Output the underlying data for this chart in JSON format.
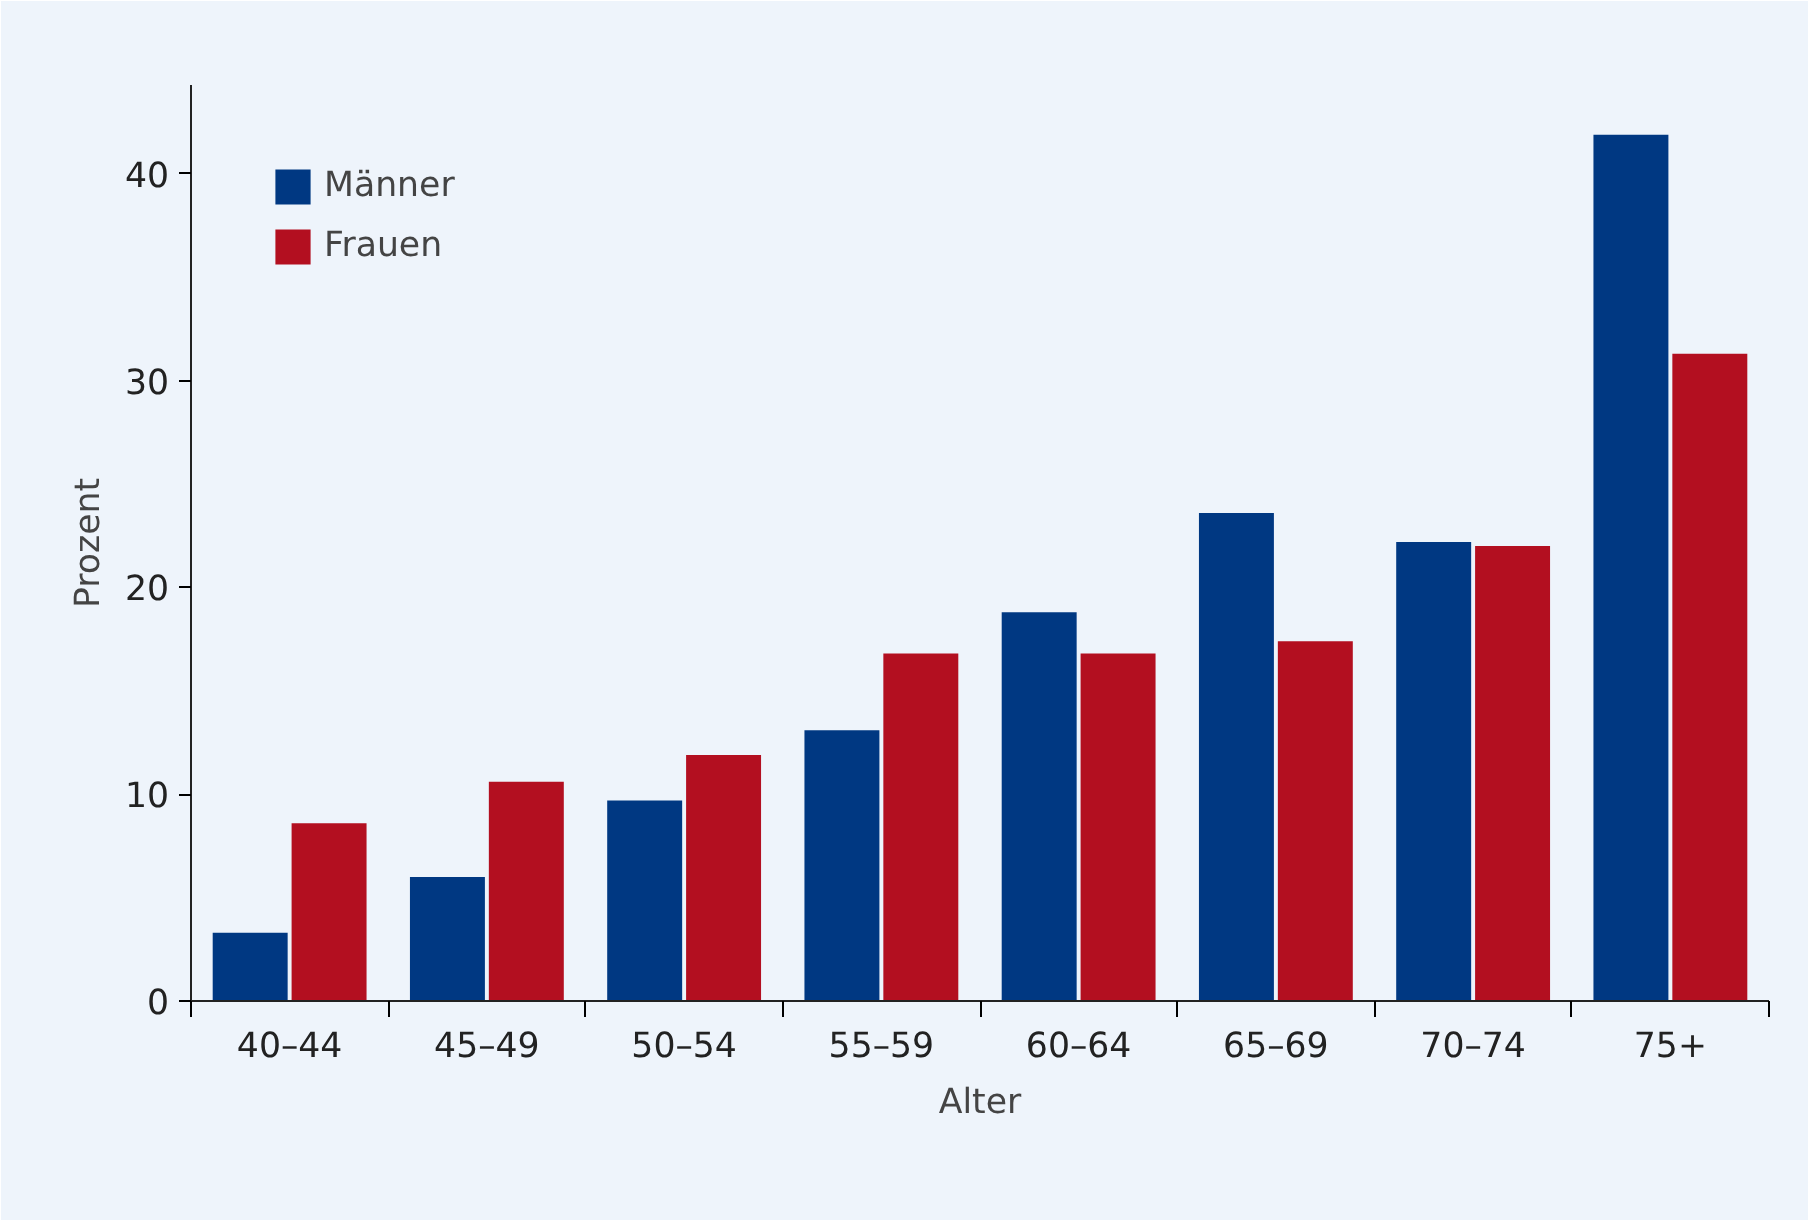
{
  "chart_data": {
    "type": "bar",
    "xlabel": "Alter",
    "ylabel": "Prozent",
    "categories": [
      "40–44",
      "45–49",
      "50–54",
      "55–59",
      "60–64",
      "65–69",
      "70–74",
      "75+"
    ],
    "series": [
      {
        "name": "Männer",
        "color": "#003882",
        "values": [
          3.3,
          6.0,
          9.7,
          13.1,
          18.8,
          23.6,
          22.2,
          41.9
        ]
      },
      {
        "name": "Frauen",
        "color": "#b30f20",
        "values": [
          8.6,
          10.6,
          11.9,
          16.8,
          16.8,
          17.4,
          22.0,
          31.3
        ]
      }
    ],
    "ylim": [
      0,
      44.3
    ],
    "yticks": [
      0,
      10,
      20,
      30,
      40
    ],
    "grid": false,
    "legend": "top left"
  }
}
